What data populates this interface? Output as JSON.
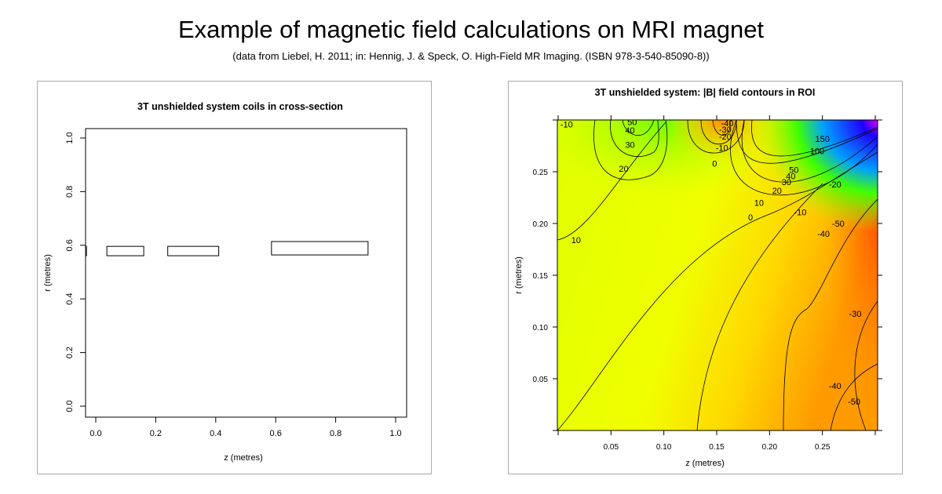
{
  "title": "Example of magnetic field calculations on MRI magnet",
  "subtitle": "(data from Liebel, H. 2011; in: Hennig, J. & Speck, O. High-Field MR Imaging. (ISBN 978-3-540-85090-8))",
  "chart_data": [
    {
      "type": "rectangles",
      "title": "3T unshielded system coils in cross-section",
      "xlabel": "z (metres)",
      "ylabel": "r (metres)",
      "xlim": [
        -0.034,
        1.034
      ],
      "ylim": [
        -0.04,
        1.035
      ],
      "xticks": [
        "0.0",
        "0.2",
        "0.4",
        "0.6",
        "0.8",
        "1.0"
      ],
      "yticks": [
        "0.0",
        "0.2",
        "0.4",
        "0.6",
        "0.8",
        "1.0"
      ],
      "grid": false,
      "coils": [
        {
          "z0": -0.034,
          "z1": -0.031,
          "r0": 0.561,
          "r1": 0.596
        },
        {
          "z0": 0.037,
          "z1": 0.16,
          "r0": 0.561,
          "r1": 0.596
        },
        {
          "z0": 0.24,
          "z1": 0.41,
          "r0": 0.561,
          "r1": 0.596
        },
        {
          "z0": 0.586,
          "z1": 0.908,
          "r0": 0.564,
          "r1": 0.614
        }
      ]
    },
    {
      "type": "contour",
      "title": "3T unshielded system: |B| field contours in ROI",
      "xlabel": "z (metres)",
      "ylabel": "r (metres)",
      "xlim": [
        0,
        0.3
      ],
      "ylim": [
        0,
        0.3
      ],
      "xticks": [
        "0.05",
        "0.10",
        "0.15",
        "0.20",
        "0.25"
      ],
      "yticks": [
        "0.05",
        "0.10",
        "0.15",
        "0.20",
        "0.25"
      ],
      "grid": false,
      "colors": {
        "low": "#ff8c00",
        "mid": "#e6ff00",
        "high": "#7fff00",
        "extreme": "#1a00ff",
        "max": "#ff00ff"
      },
      "contour_labels": [
        {
          "text": "-10",
          "z": 0.008,
          "r": 0.296
        },
        {
          "text": "50",
          "z": 0.07,
          "r": 0.298
        },
        {
          "text": "40",
          "z": 0.068,
          "r": 0.29
        },
        {
          "text": "30",
          "z": 0.068,
          "r": 0.276
        },
        {
          "text": "20",
          "z": 0.062,
          "r": 0.253
        },
        {
          "text": "10",
          "z": 0.017,
          "r": 0.184
        },
        {
          "text": "-40",
          "z": 0.16,
          "r": 0.297
        },
        {
          "text": "-30",
          "z": 0.158,
          "r": 0.291
        },
        {
          "text": "-20",
          "z": 0.158,
          "r": 0.284
        },
        {
          "text": "-10",
          "z": 0.155,
          "r": 0.273
        },
        {
          "text": "0",
          "z": 0.148,
          "r": 0.258
        },
        {
          "text": "150",
          "z": 0.25,
          "r": 0.282
        },
        {
          "text": "100",
          "z": 0.245,
          "r": 0.27
        },
        {
          "text": "50",
          "z": 0.223,
          "r": 0.252
        },
        {
          "text": "40",
          "z": 0.22,
          "r": 0.246
        },
        {
          "text": "30",
          "z": 0.216,
          "r": 0.24
        },
        {
          "text": "20",
          "z": 0.207,
          "r": 0.232
        },
        {
          "text": "10",
          "z": 0.19,
          "r": 0.22
        },
        {
          "text": "0",
          "z": 0.182,
          "r": 0.206
        },
        {
          "text": "-10",
          "z": 0.229,
          "r": 0.211
        },
        {
          "text": "-20",
          "z": 0.262,
          "r": 0.238
        },
        {
          "text": "-40",
          "z": 0.251,
          "r": 0.19
        },
        {
          "text": "-50",
          "z": 0.265,
          "r": 0.2
        },
        {
          "text": "-30",
          "z": 0.281,
          "r": 0.113
        },
        {
          "text": "-40",
          "z": 0.262,
          "r": 0.043
        },
        {
          "text": "-50",
          "z": 0.28,
          "r": 0.028
        }
      ]
    }
  ]
}
